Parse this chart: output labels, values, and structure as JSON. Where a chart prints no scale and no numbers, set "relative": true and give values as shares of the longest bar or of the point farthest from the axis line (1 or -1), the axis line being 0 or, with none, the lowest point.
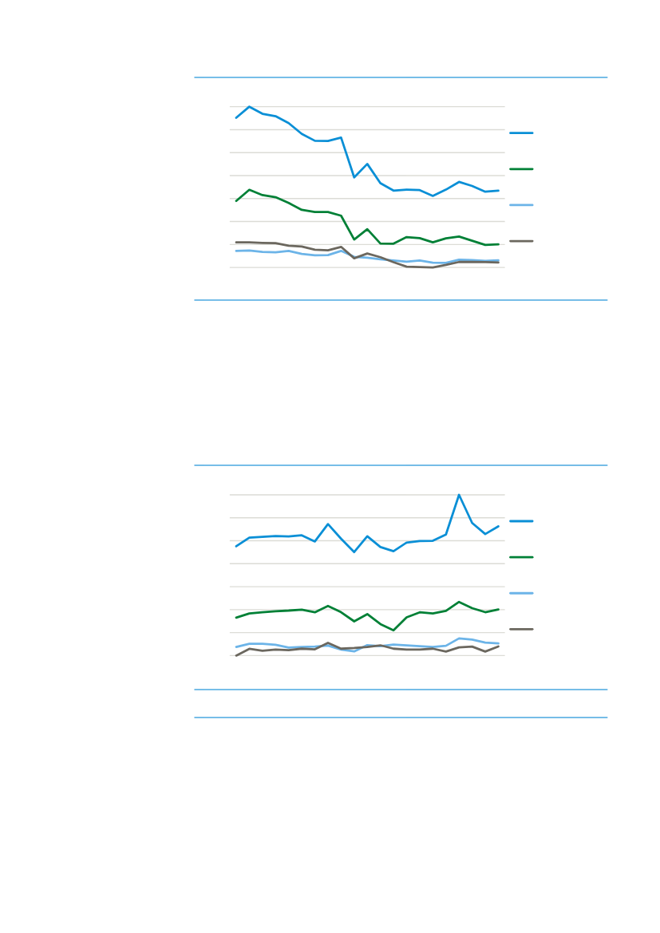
{
  "chart_data": [
    {
      "type": "line",
      "relative": true,
      "grid": "y",
      "categories": [
        null,
        null,
        null,
        null,
        null,
        null,
        null,
        null,
        null,
        null,
        null,
        null,
        null,
        null,
        null,
        null,
        null,
        null,
        null,
        null,
        null
      ],
      "series": [
        {
          "color": "#0a8fd6",
          "values": [
            0.931,
            1,
            0.956,
            0.941,
            0.898,
            0.831,
            0.788,
            0.787,
            0.808,
            0.56,
            0.644,
            0.524,
            0.478,
            0.484,
            0.481,
            0.445,
            0.484,
            0.532,
            0.507,
            0.471,
            0.478
          ]
        },
        {
          "color": "#008036",
          "values": [
            0.414,
            0.483,
            0.45,
            0.437,
            0.401,
            0.358,
            0.345,
            0.345,
            0.322,
            0.174,
            0.238,
            0.149,
            0.148,
            0.189,
            0.182,
            0.156,
            0.181,
            0.192,
            0.166,
            0.14,
            0.144
          ]
        },
        {
          "color": "#6cb4e8",
          "values": [
            0.103,
            0.105,
            0.097,
            0.094,
            0.103,
            0.084,
            0.076,
            0.077,
            0.103,
            0.066,
            0.061,
            0.051,
            0.043,
            0.036,
            0.043,
            0.03,
            0.028,
            0.048,
            0.046,
            0.041,
            0.044
          ]
        },
        {
          "color": "#6b675e",
          "values": [
            0.156,
            0.156,
            0.153,
            0.151,
            0.135,
            0.13,
            0.11,
            0.107,
            0.128,
            0.057,
            0.087,
            0.064,
            0.033,
            0.005,
            0.002,
            0,
            0.016,
            0.034,
            0.034,
            0.033,
            0.031
          ]
        }
      ]
    },
    {
      "type": "line",
      "relative": true,
      "grid": "y",
      "categories": [
        null,
        null,
        null,
        null,
        null,
        null,
        null,
        null,
        null,
        null,
        null,
        null,
        null,
        null,
        null,
        null,
        null,
        null,
        null,
        null,
        null
      ],
      "series": [
        {
          "color": "#0a8fd6",
          "values": [
            0.68,
            0.734,
            0.739,
            0.744,
            0.741,
            0.748,
            0.71,
            0.818,
            0.727,
            0.644,
            0.742,
            0.675,
            0.649,
            0.703,
            0.713,
            0.714,
            0.753,
            1,
            0.825,
            0.756,
            0.804
          ]
        },
        {
          "color": "#008036",
          "values": [
            0.236,
            0.262,
            0.269,
            0.276,
            0.28,
            0.286,
            0.269,
            0.309,
            0.27,
            0.213,
            0.258,
            0.196,
            0.157,
            0.238,
            0.269,
            0.262,
            0.278,
            0.334,
            0.295,
            0.27,
            0.287
          ]
        },
        {
          "color": "#6cb4e8",
          "values": [
            0.054,
            0.073,
            0.073,
            0.067,
            0.05,
            0.054,
            0.056,
            0.062,
            0.037,
            0.026,
            0.065,
            0.059,
            0.068,
            0.064,
            0.059,
            0.053,
            0.061,
            0.107,
            0.099,
            0.081,
            0.076
          ]
        },
        {
          "color": "#6b675e",
          "values": [
            0,
            0.042,
            0.03,
            0.037,
            0.034,
            0.043,
            0.039,
            0.079,
            0.043,
            0.047,
            0.053,
            0.064,
            0.043,
            0.037,
            0.037,
            0.043,
            0.025,
            0.051,
            0.056,
            0.025,
            0.057
          ]
        }
      ]
    }
  ]
}
